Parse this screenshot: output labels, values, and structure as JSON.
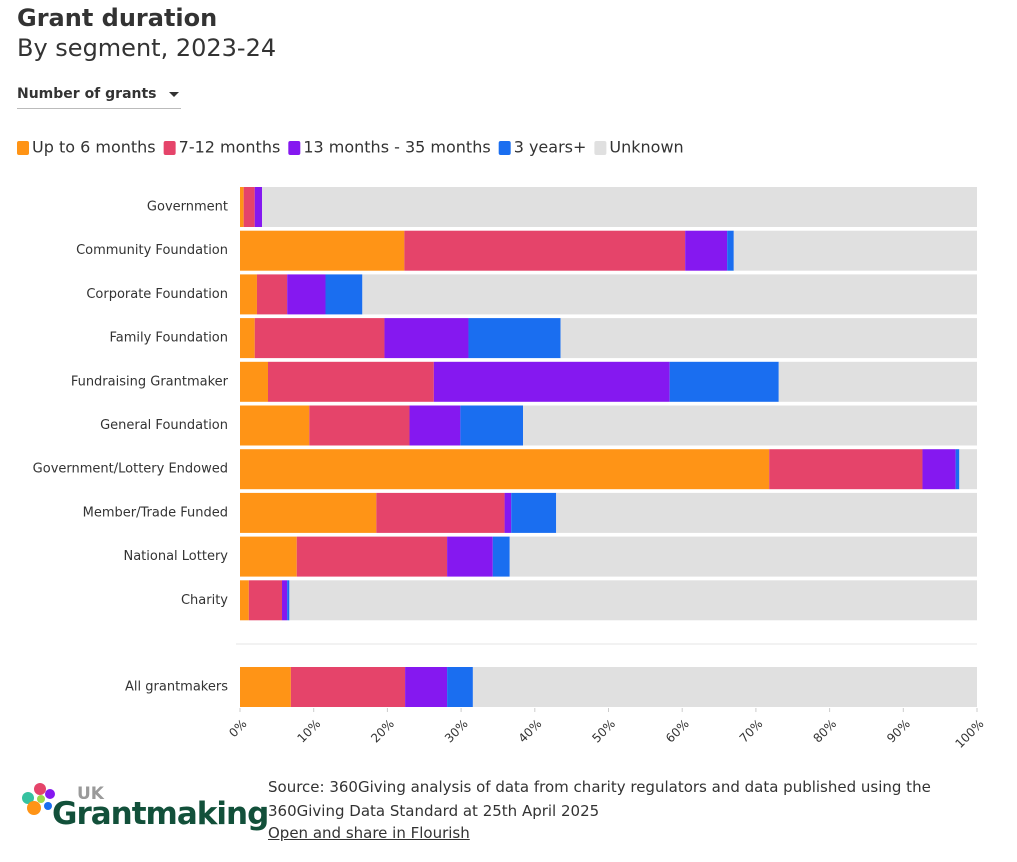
{
  "chart_data": {
    "type": "stacked_bar_horizontal",
    "title": "Grant duration",
    "subtitle": "By segment, 2023-24",
    "categories": [
      "Government",
      "Community Foundation",
      "Corporate Foundation",
      "Family Foundation",
      "Fundraising Grantmaker",
      "General Foundation",
      "Government/Lottery Endowed",
      "Member/Trade Funded",
      "National Lottery",
      "Charity",
      "All grantmakers"
    ],
    "series": [
      {
        "name": "Up to 6 months",
        "color": "#ff9416",
        "values": [
          0.5,
          22.3,
          2.3,
          2.0,
          3.8,
          9.4,
          71.8,
          18.5,
          7.7,
          1.2,
          6.9
        ]
      },
      {
        "name": "7-12 months",
        "color": "#e5446a",
        "values": [
          1.5,
          38.1,
          4.1,
          17.6,
          22.5,
          13.6,
          20.8,
          17.4,
          20.4,
          4.5,
          15.5
        ]
      },
      {
        "name": "13 months - 35 months",
        "color": "#8518f0",
        "values": [
          1.0,
          5.7,
          5.2,
          11.4,
          32.0,
          6.9,
          4.5,
          0.9,
          6.2,
          0.7,
          5.7
        ]
      },
      {
        "name": "3 years+",
        "color": "#1a6ef0",
        "values": [
          0,
          0.9,
          5.0,
          12.5,
          14.8,
          8.5,
          0.5,
          6.1,
          2.3,
          0.3,
          3.5
        ]
      },
      {
        "name": "Unknown",
        "color": "#e0e0e0",
        "values": [
          97.0,
          33.0,
          83.4,
          56.5,
          26.9,
          61.6,
          2.4,
          57.1,
          63.4,
          93.3,
          68.4
        ]
      }
    ],
    "xlim": [
      0,
      100
    ],
    "xticks": [
      {
        "value": 0,
        "label": "0%"
      },
      {
        "value": 10,
        "label": "10%"
      },
      {
        "value": 20,
        "label": "20%"
      },
      {
        "value": 30,
        "label": "30%"
      },
      {
        "value": 40,
        "label": "40%"
      },
      {
        "value": 50,
        "label": "50%"
      },
      {
        "value": 60,
        "label": "60%"
      },
      {
        "value": 70,
        "label": "70%"
      },
      {
        "value": 80,
        "label": "80%"
      },
      {
        "value": 90,
        "label": "90%"
      },
      {
        "value": 100,
        "label": "100%"
      }
    ],
    "legend": "top-left"
  },
  "controls": {
    "dropdown": "Number of grants"
  },
  "footer": {
    "source": "Source: 360Giving analysis of data from charity regulators and data published using the 360Giving Data Standard at 25th April 2025",
    "link": "Open and share in Flourish",
    "logo_small": "UK",
    "logo_main": "Grantmaking"
  }
}
